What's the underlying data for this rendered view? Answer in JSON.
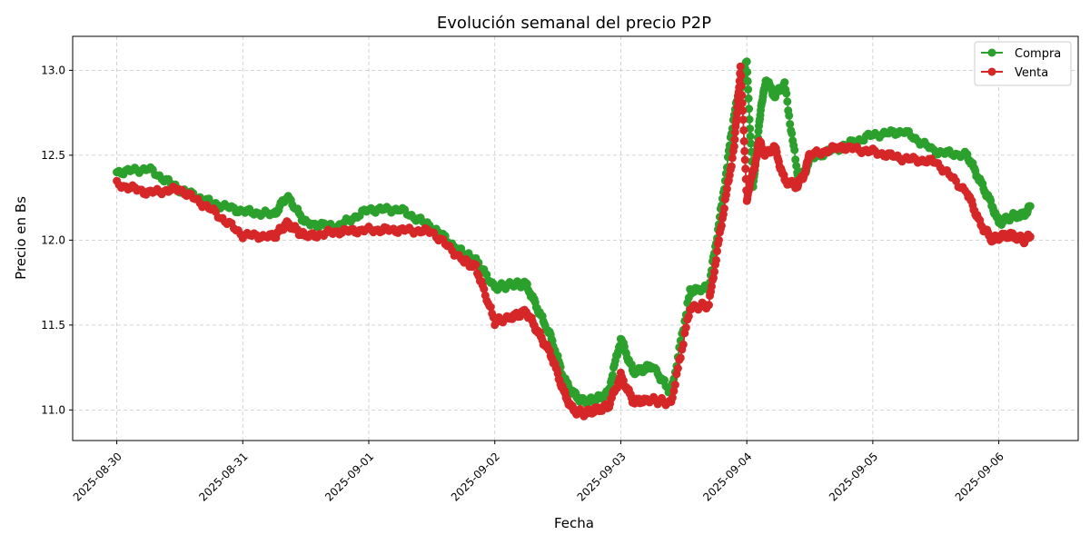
{
  "chart_data": {
    "type": "line",
    "title": "Evolución semanal del precio P2P",
    "xlabel": "Fecha",
    "ylabel": "Precio en Bs",
    "x_ticks": [
      "2025-08-30",
      "2025-08-31",
      "2025-09-01",
      "2025-09-02",
      "2025-09-03",
      "2025-09-04",
      "2025-09-05",
      "2025-09-06"
    ],
    "y_ticks": [
      "11.0",
      "11.5",
      "12.0",
      "12.5",
      "13.0"
    ],
    "xlim": [
      -0.35,
      7.63
    ],
    "ylim": [
      10.82,
      13.2
    ],
    "grid": true,
    "legend_position": "top-right",
    "series": [
      {
        "name": "Compra",
        "color": "#2ca02c",
        "x": [
          0.0,
          0.25,
          0.5,
          0.75,
          1.0,
          1.25,
          1.35,
          1.5,
          1.75,
          2.0,
          2.25,
          2.5,
          2.75,
          2.85,
          3.0,
          3.15,
          3.25,
          3.35,
          3.45,
          3.55,
          3.62,
          3.7,
          3.8,
          3.9,
          4.0,
          4.1,
          4.25,
          4.4,
          4.55,
          4.7,
          4.8,
          4.9,
          5.0,
          5.05,
          5.1,
          5.15,
          5.22,
          5.3,
          5.4,
          5.45,
          5.5,
          5.75,
          6.0,
          6.25,
          6.5,
          6.75,
          6.85,
          6.95,
          7.0,
          7.1,
          7.2,
          7.25
        ],
        "y": [
          12.4,
          12.42,
          12.3,
          12.22,
          12.17,
          12.15,
          12.26,
          12.1,
          12.08,
          12.18,
          12.18,
          12.08,
          11.92,
          11.88,
          11.72,
          11.74,
          11.74,
          11.58,
          11.42,
          11.18,
          11.1,
          11.05,
          11.06,
          11.1,
          11.42,
          11.22,
          11.26,
          11.1,
          11.7,
          11.72,
          12.2,
          12.75,
          13.05,
          12.3,
          12.7,
          12.95,
          12.85,
          12.92,
          12.4,
          12.38,
          12.48,
          12.55,
          12.62,
          12.64,
          12.52,
          12.5,
          12.35,
          12.2,
          12.1,
          12.14,
          12.15,
          12.2
        ]
      },
      {
        "name": "Venta",
        "color": "#d62728",
        "x": [
          0.0,
          0.25,
          0.5,
          0.75,
          1.0,
          1.25,
          1.35,
          1.5,
          1.75,
          2.0,
          2.25,
          2.5,
          2.75,
          2.85,
          3.0,
          3.15,
          3.25,
          3.35,
          3.45,
          3.55,
          3.62,
          3.7,
          3.8,
          3.9,
          4.0,
          4.1,
          4.25,
          4.4,
          4.55,
          4.7,
          4.8,
          4.9,
          4.95,
          5.0,
          5.05,
          5.1,
          5.15,
          5.22,
          5.3,
          5.4,
          5.45,
          5.5,
          5.75,
          6.0,
          6.25,
          6.5,
          6.75,
          6.85,
          6.95,
          7.0,
          7.1,
          7.2,
          7.25
        ],
        "y": [
          12.33,
          12.28,
          12.3,
          12.18,
          12.03,
          12.02,
          12.1,
          12.02,
          12.05,
          12.06,
          12.06,
          12.05,
          11.88,
          11.84,
          11.52,
          11.55,
          11.58,
          11.45,
          11.32,
          11.1,
          11.0,
          10.98,
          11.0,
          11.02,
          11.2,
          11.05,
          11.06,
          11.04,
          11.6,
          11.62,
          12.1,
          12.55,
          13.02,
          12.25,
          12.4,
          12.58,
          12.5,
          12.55,
          12.35,
          12.32,
          12.38,
          12.5,
          12.55,
          12.52,
          12.48,
          12.46,
          12.28,
          12.1,
          12.0,
          12.02,
          12.03,
          12.0,
          12.02
        ]
      }
    ]
  }
}
